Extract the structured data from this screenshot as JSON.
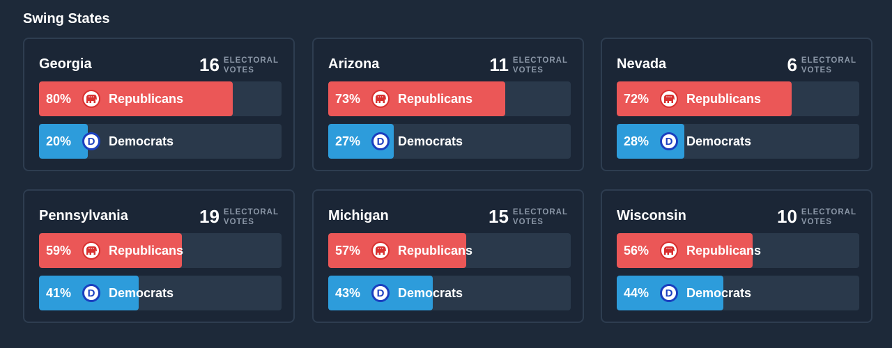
{
  "title": "Swing States",
  "colors": {
    "republican": "#eb5757",
    "democrat": "#2d9cdb",
    "track": "#2a394b"
  },
  "ev_label_line1": "ELECTORAL",
  "ev_label_line2": "VOTES",
  "parties": {
    "rep_label": "Republicans",
    "dem_label": "Democrats",
    "rep_icon": "elephant-icon",
    "dem_icon": "democrat-d-icon"
  },
  "states": [
    {
      "name": "Georgia",
      "electoral_votes": "16",
      "rep_pct": 80,
      "dem_pct": 20,
      "rep_text": "80%",
      "dem_text": "20%"
    },
    {
      "name": "Arizona",
      "electoral_votes": "11",
      "rep_pct": 73,
      "dem_pct": 27,
      "rep_text": "73%",
      "dem_text": "27%"
    },
    {
      "name": "Nevada",
      "electoral_votes": "6",
      "rep_pct": 72,
      "dem_pct": 28,
      "rep_text": "72%",
      "dem_text": "28%"
    },
    {
      "name": "Pennsylvania",
      "electoral_votes": "19",
      "rep_pct": 59,
      "dem_pct": 41,
      "rep_text": "59%",
      "dem_text": "41%"
    },
    {
      "name": "Michigan",
      "electoral_votes": "15",
      "rep_pct": 57,
      "dem_pct": 43,
      "rep_text": "57%",
      "dem_text": "43%"
    },
    {
      "name": "Wisconsin",
      "electoral_votes": "10",
      "rep_pct": 56,
      "dem_pct": 44,
      "rep_text": "56%",
      "dem_text": "44%"
    }
  ]
}
